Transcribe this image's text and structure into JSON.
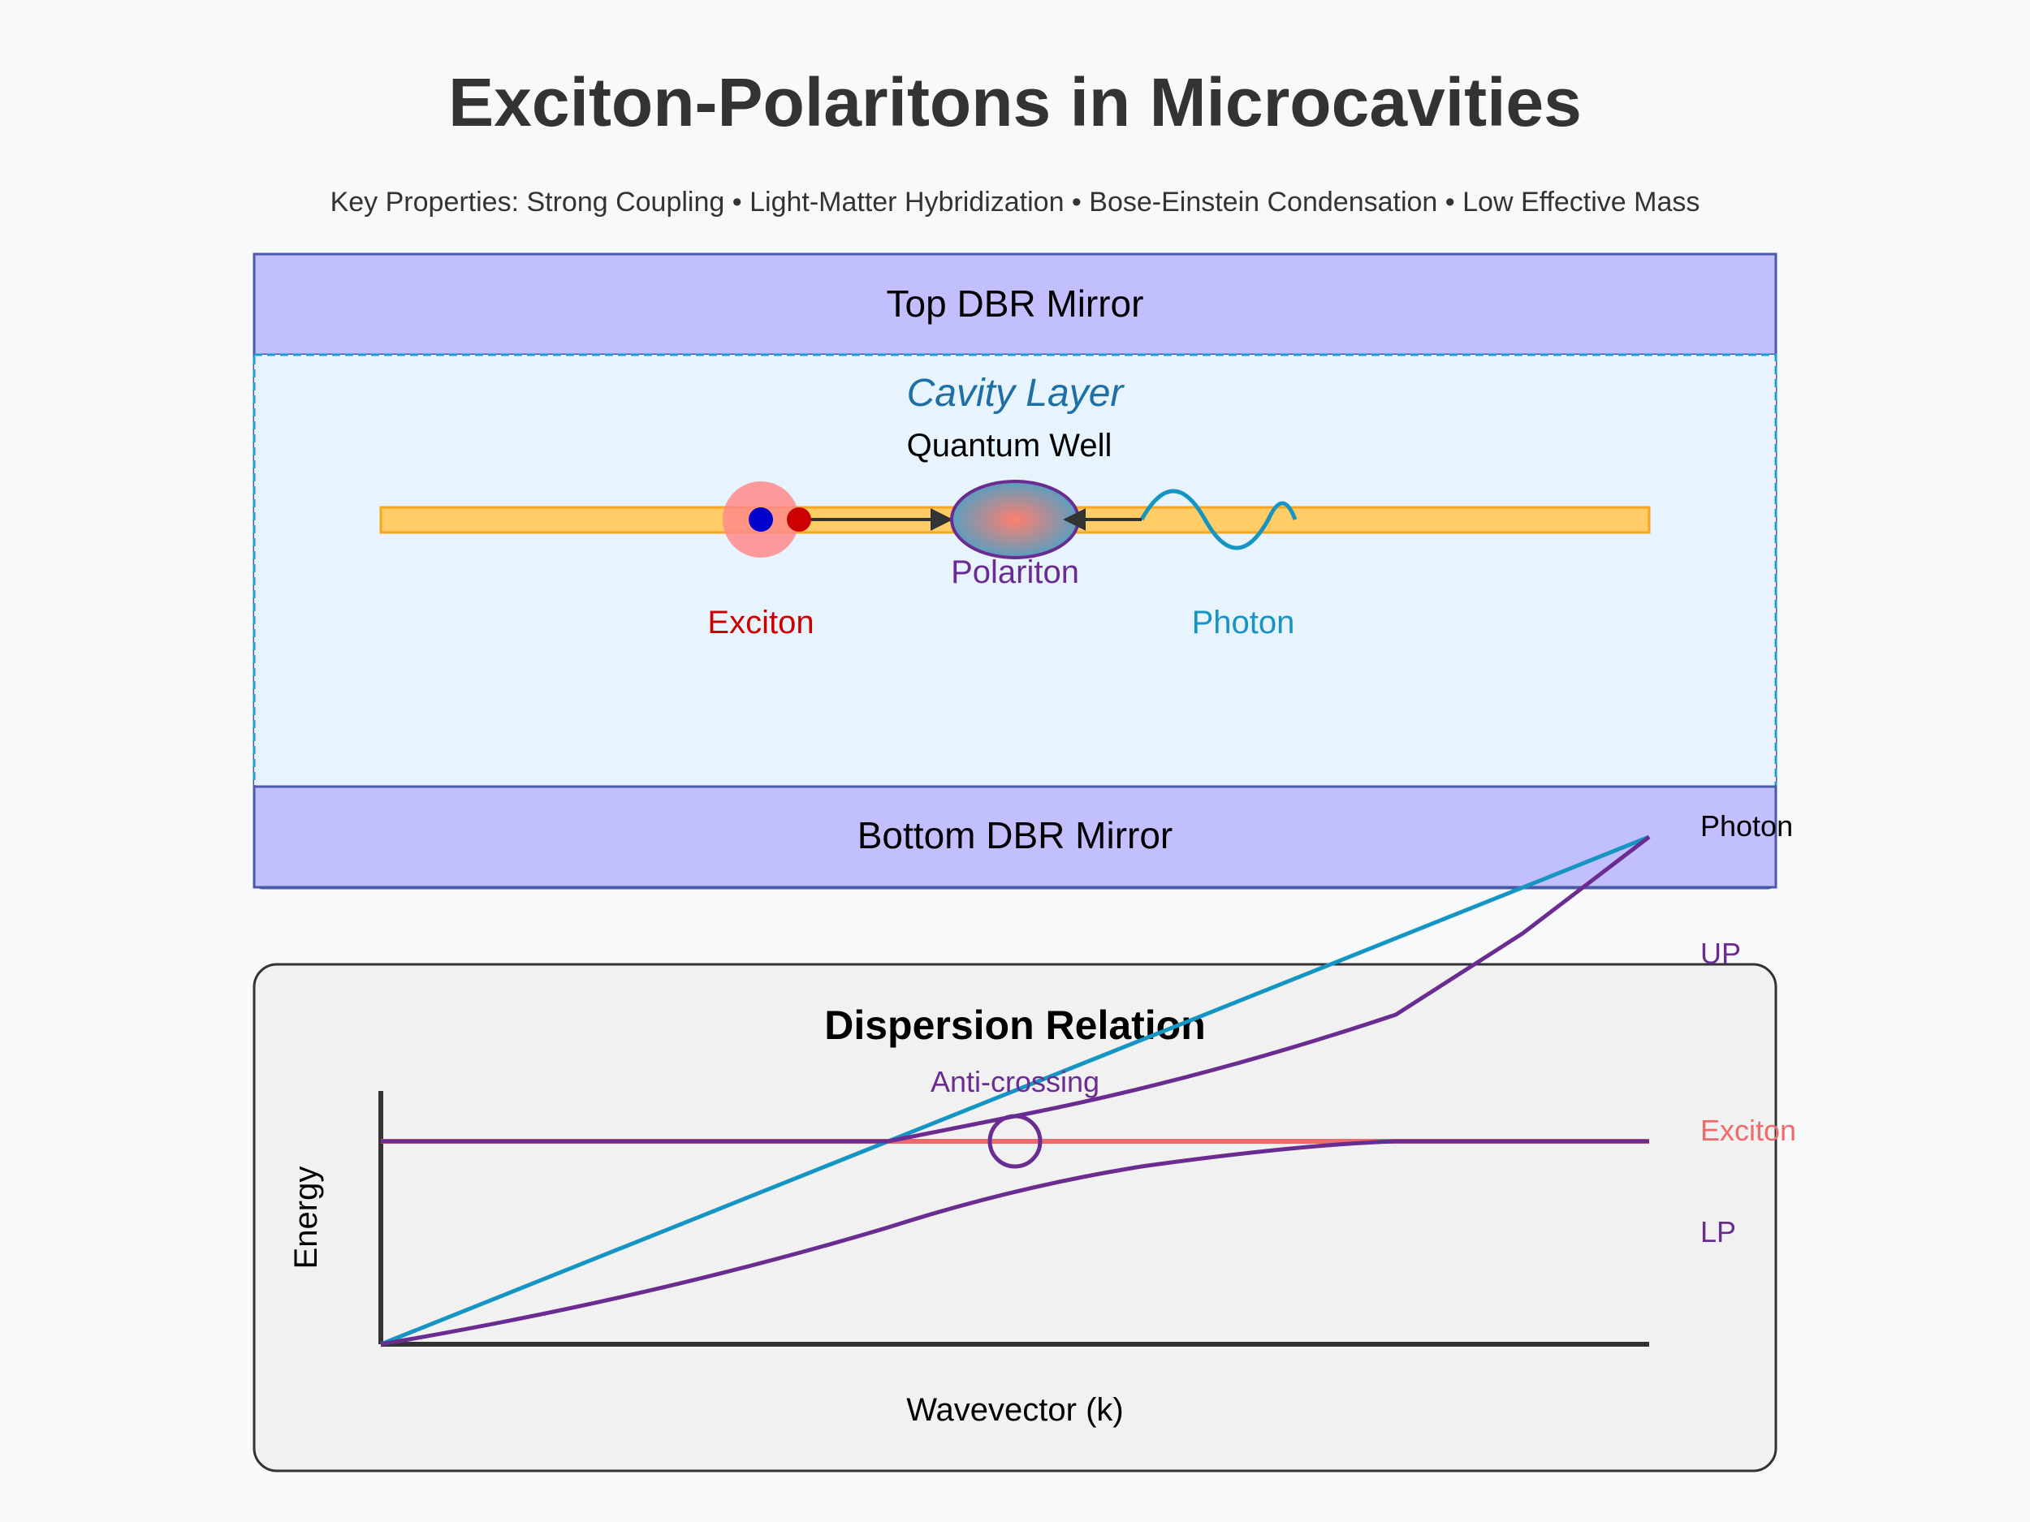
{
  "title": "Exciton-Polaritons in Microcavities",
  "subtitle": "Key Properties: Strong Coupling • Light-Matter Hybridization • Bose-Einstein Condensation • Low Effective Mass",
  "cavity": {
    "top_mirror": "Top DBR Mirror",
    "bottom_mirror": "Bottom DBR Mirror",
    "cavity_layer": "Cavity Layer",
    "quantum_well": "Quantum Well",
    "polariton": "Polariton",
    "exciton": "Exciton",
    "photon": "Photon"
  },
  "dispersion": {
    "title": "Dispersion Relation",
    "xlabel": "Wavevector (k)",
    "ylabel": "Energy",
    "annotation": "Anti-crossing",
    "curve_labels": {
      "photon": "Photon",
      "up": "UP",
      "exciton": "Exciton",
      "lp": "LP"
    }
  },
  "colors": {
    "mirror": "#c1bffe",
    "mirror_stroke": "#4b5aa8",
    "cavity": "#e8f4fd",
    "cavity_stroke": "#1a9fcf",
    "quantum_well": "#ffcc66",
    "quantum_well_stroke": "#f5a623",
    "exciton": "#cc0000",
    "photon": "#1695c2",
    "polariton": "#6a2c91",
    "exciton_curve": "#f06a6a",
    "dispersion_panel": "#f1f1f1"
  }
}
